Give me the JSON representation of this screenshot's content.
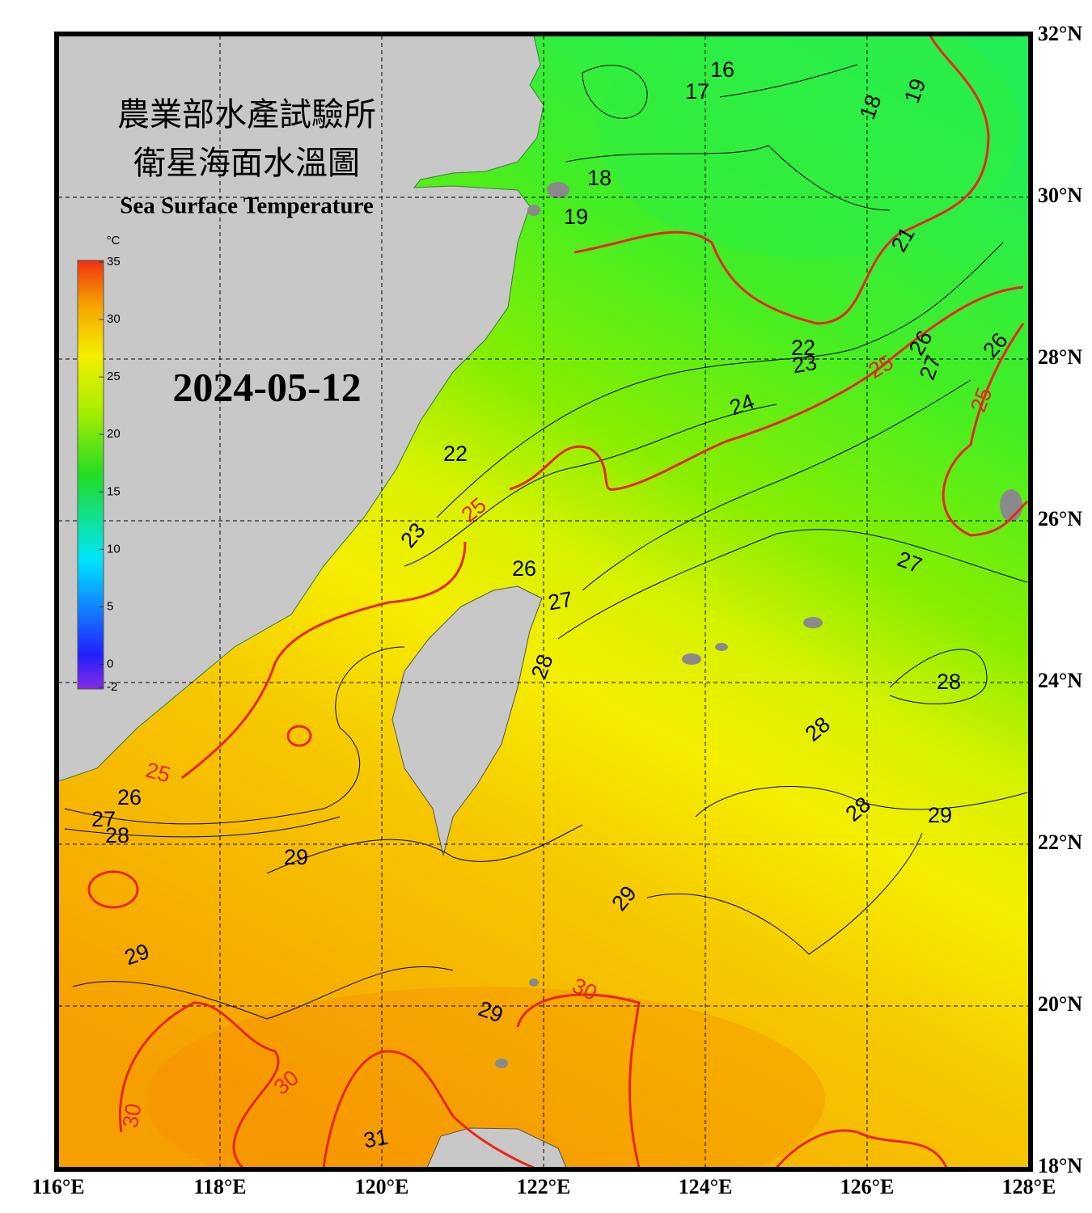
{
  "header": {
    "agency": "農業部水產試驗所",
    "title": "衛星海面水溫圖",
    "subtitle": "Sea Surface Temperature",
    "date": "2024-05-12"
  },
  "colorbar": {
    "unit": "°C",
    "ticks": [
      -2,
      0,
      5,
      10,
      15,
      20,
      25,
      30,
      35
    ]
  },
  "axes": {
    "xticks": [
      {
        "value": 116,
        "label": "116°E"
      },
      {
        "value": 118,
        "label": "118°E"
      },
      {
        "value": 120,
        "label": "120°E"
      },
      {
        "value": 122,
        "label": "122°E"
      },
      {
        "value": 124,
        "label": "124°E"
      },
      {
        "value": 126,
        "label": "126°E"
      },
      {
        "value": 128,
        "label": "128°E"
      }
    ],
    "yticks": [
      {
        "value": 18,
        "label": "18°N"
      },
      {
        "value": 20,
        "label": "20°N"
      },
      {
        "value": 22,
        "label": "22°N"
      },
      {
        "value": 24,
        "label": "24°N"
      },
      {
        "value": 26,
        "label": "26°N"
      },
      {
        "value": 28,
        "label": "28°N"
      },
      {
        "value": 30,
        "label": "30°N"
      },
      {
        "value": 32,
        "label": "32°N"
      }
    ]
  },
  "contour_labels": [
    {
      "text": "16"
    },
    {
      "text": "17"
    },
    {
      "text": "18"
    },
    {
      "text": "19"
    },
    {
      "text": "18"
    },
    {
      "text": "19"
    },
    {
      "text": "21"
    },
    {
      "text": "22"
    },
    {
      "text": "23"
    },
    {
      "text": "24"
    },
    {
      "text": "25",
      "color": "#e8261e"
    },
    {
      "text": "26"
    },
    {
      "text": "27"
    },
    {
      "text": "26"
    },
    {
      "text": "25",
      "color": "#e8261e"
    },
    {
      "text": "22"
    },
    {
      "text": "23"
    },
    {
      "text": "25",
      "color": "#e8261e"
    },
    {
      "text": "26"
    },
    {
      "text": "27"
    },
    {
      "text": "28"
    },
    {
      "text": "27"
    },
    {
      "text": "28"
    },
    {
      "text": "28"
    },
    {
      "text": "28"
    },
    {
      "text": "29"
    },
    {
      "text": "29"
    },
    {
      "text": "29"
    },
    {
      "text": "26"
    },
    {
      "text": "27"
    },
    {
      "text": "28"
    },
    {
      "text": "25",
      "color": "#e8261e"
    },
    {
      "text": "29"
    },
    {
      "text": "29"
    },
    {
      "text": "30",
      "color": "#e8261e"
    },
    {
      "text": "30",
      "color": "#e8261e"
    },
    {
      "text": "30",
      "color": "#e8261e"
    },
    {
      "text": "31"
    }
  ]
}
